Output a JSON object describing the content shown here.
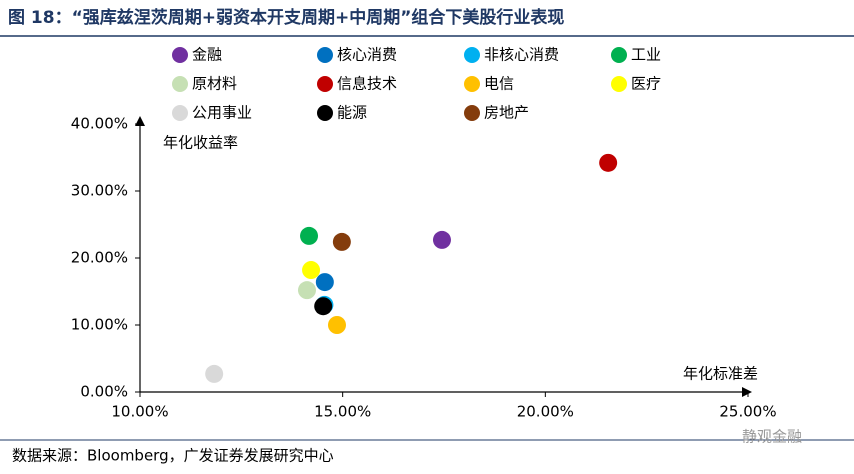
{
  "chart_data": {
    "type": "scatter",
    "title": "图 18：“强库兹涅茨周期+弱资本开支周期+中周期”组合下美股行业表现",
    "x_label": "年化标准差",
    "y_label": "年化收益率",
    "source": "数据来源：Bloomberg，广发证券发展研究中心",
    "watermark": "静观金融",
    "xlim": [
      10,
      25
    ],
    "ylim": [
      0,
      40
    ],
    "xticks": [
      {
        "value": 10,
        "label": "10.00%"
      },
      {
        "value": 15,
        "label": "15.00%"
      },
      {
        "value": 20,
        "label": "20.00%"
      },
      {
        "value": 25,
        "label": "25.00%"
      }
    ],
    "yticks": [
      {
        "value": 0,
        "label": "0.00%"
      },
      {
        "value": 10,
        "label": "10.00%"
      },
      {
        "value": 20,
        "label": "20.00%"
      },
      {
        "value": 30,
        "label": "30.00%"
      },
      {
        "value": 40,
        "label": "40.00%"
      }
    ],
    "series": [
      {
        "name": "金融",
        "color": "#7030a0",
        "x": [
          17.45
        ],
        "values": [
          22.7
        ]
      },
      {
        "name": "核心消费",
        "color": "#0070c0",
        "x": [
          14.56
        ],
        "values": [
          16.4
        ]
      },
      {
        "name": "非核心消费",
        "color": "#00b0f0",
        "x": [
          14.55
        ],
        "values": [
          13.0
        ]
      },
      {
        "name": "工业",
        "color": "#00b050",
        "x": [
          14.17
        ],
        "values": [
          23.3
        ]
      },
      {
        "name": "原材料",
        "color": "#c6e0b4",
        "x": [
          14.12
        ],
        "values": [
          15.2
        ]
      },
      {
        "name": "信息技术",
        "color": "#c00000",
        "x": [
          21.55
        ],
        "values": [
          34.2
        ]
      },
      {
        "name": "电信",
        "color": "#ffc000",
        "x": [
          14.86
        ],
        "values": [
          10.0
        ]
      },
      {
        "name": "医疗",
        "color": "#ffff00",
        "x": [
          14.22
        ],
        "values": [
          18.2
        ]
      },
      {
        "name": "公用事业",
        "color": "#d9d9d9",
        "x": [
          11.83
        ],
        "values": [
          2.7
        ]
      },
      {
        "name": "能源",
        "color": "#000000",
        "x": [
          14.52
        ],
        "values": [
          12.8
        ]
      },
      {
        "name": "房地产",
        "color": "#843c0c",
        "x": [
          14.98
        ],
        "values": [
          22.4
        ]
      }
    ]
  }
}
